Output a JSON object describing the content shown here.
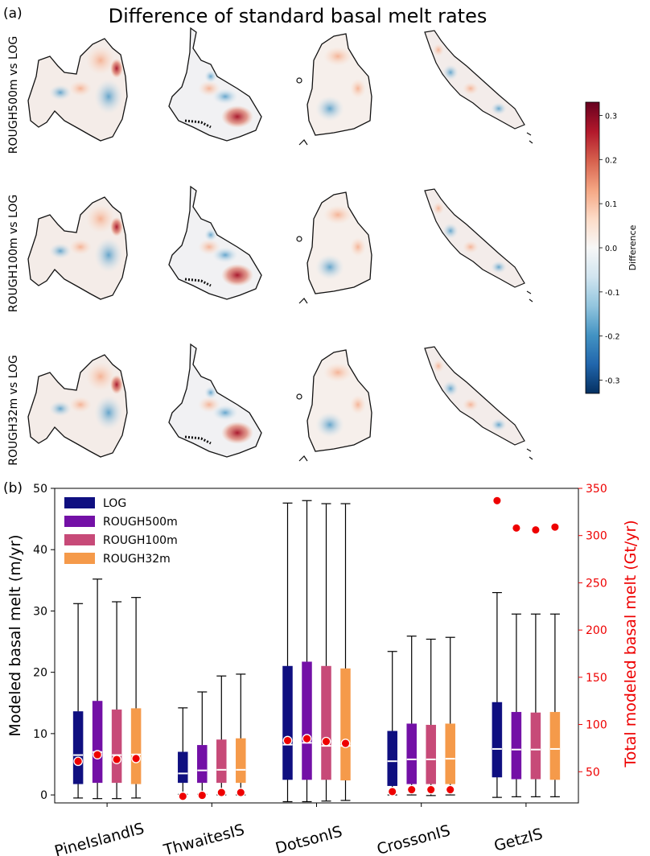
{
  "panel_a": {
    "label": "(a)",
    "title": "Difference of standard basal melt rates",
    "rows": [
      "ROUGH500m vs LOG",
      "ROUGH100m vs LOG",
      "ROUGH32m vs LOG"
    ],
    "colorbar": {
      "label": "Difference",
      "ticks": [
        "0.3",
        "0.2",
        "0.1",
        "0.0",
        "-0.1",
        "-0.2",
        "-0.3"
      ],
      "range": [
        -0.33,
        0.33
      ],
      "colors": [
        "#053061",
        "#2166ac",
        "#4393c3",
        "#92c5de",
        "#d1e5f0",
        "#f7f7f7",
        "#fddbc7",
        "#f4a582",
        "#d6604d",
        "#b2182b",
        "#67001f"
      ]
    },
    "map_color_hints": [
      {
        "pos": "hot-spot",
        "color": "#b2182b"
      },
      {
        "pos": "warm",
        "color": "#f4a582"
      },
      {
        "pos": "cool",
        "color": "#4393c3"
      }
    ]
  },
  "panel_b": {
    "label": "(b)"
  },
  "chart_data": {
    "type": "box",
    "categories": [
      "PineIslandIS",
      "ThwaitesIS",
      "DotsonIS",
      "CrossonIS",
      "GetzIS"
    ],
    "legend": [
      {
        "name": "LOG",
        "color": "#0f0f80"
      },
      {
        "name": "ROUGH500m",
        "color": "#7310a6"
      },
      {
        "name": "ROUGH100m",
        "color": "#c74a78"
      },
      {
        "name": "ROUGH32m",
        "color": "#f59a4a"
      }
    ],
    "ylabel": "Modeled basal melt (m/yr)",
    "y2label": "Total modeled basal melt (Gt/yr)",
    "ylim": [
      -1.3,
      50
    ],
    "yticks": [
      0,
      10,
      20,
      30,
      40,
      50
    ],
    "y2lim": [
      17,
      350
    ],
    "y2ticks": [
      50,
      100,
      150,
      200,
      250,
      300,
      350
    ],
    "series": [
      {
        "name": "LOG",
        "boxes": [
          {
            "min": -0.5,
            "q1": 1.8,
            "median": 6.5,
            "q3": 13.6,
            "max": 31.2
          },
          {
            "min": 0.1,
            "q1": 2.0,
            "median": 3.5,
            "q3": 7.0,
            "max": 14.2
          },
          {
            "min": -1.1,
            "q1": 2.5,
            "median": 8.2,
            "q3": 21.0,
            "max": 47.6
          },
          {
            "min": 0.0,
            "q1": 1.5,
            "median": 5.5,
            "q3": 10.4,
            "max": 23.4
          },
          {
            "min": -0.4,
            "q1": 2.9,
            "median": 7.5,
            "q3": 15.1,
            "max": 33.0
          }
        ],
        "totals": [
          61,
          24,
          83,
          29,
          337
        ]
      },
      {
        "name": "ROUGH500m",
        "boxes": [
          {
            "min": -0.6,
            "q1": 2.0,
            "median": 7.0,
            "q3": 15.3,
            "max": 35.2
          },
          {
            "min": 0.1,
            "q1": 2.0,
            "median": 4.0,
            "q3": 8.1,
            "max": 16.8
          },
          {
            "min": -1.1,
            "q1": 2.5,
            "median": 8.5,
            "q3": 21.7,
            "max": 48.0
          },
          {
            "min": 0.0,
            "q1": 1.8,
            "median": 5.8,
            "q3": 11.6,
            "max": 25.9
          },
          {
            "min": -0.3,
            "q1": 2.6,
            "median": 7.4,
            "q3": 13.5,
            "max": 29.5
          }
        ],
        "totals": [
          68,
          25,
          85,
          31,
          308
        ]
      },
      {
        "name": "ROUGH100m",
        "boxes": [
          {
            "min": -0.6,
            "q1": 2.0,
            "median": 6.5,
            "q3": 13.9,
            "max": 31.5
          },
          {
            "min": 0.0,
            "q1": 2.0,
            "median": 4.1,
            "q3": 9.0,
            "max": 19.4
          },
          {
            "min": -1.0,
            "q1": 2.5,
            "median": 8.0,
            "q3": 21.0,
            "max": 47.5
          },
          {
            "min": -0.1,
            "q1": 1.8,
            "median": 5.8,
            "q3": 11.4,
            "max": 25.4
          },
          {
            "min": -0.3,
            "q1": 2.6,
            "median": 7.4,
            "q3": 13.4,
            "max": 29.5
          }
        ],
        "totals": [
          63,
          28,
          82,
          31,
          306
        ]
      },
      {
        "name": "ROUGH32m",
        "boxes": [
          {
            "min": -0.5,
            "q1": 1.8,
            "median": 6.6,
            "q3": 14.1,
            "max": 32.2
          },
          {
            "min": 0.0,
            "q1": 2.0,
            "median": 4.1,
            "q3": 9.2,
            "max": 19.7
          },
          {
            "min": -0.9,
            "q1": 2.4,
            "median": 8.0,
            "q3": 20.6,
            "max": 47.5
          },
          {
            "min": 0.0,
            "q1": 1.8,
            "median": 5.9,
            "q3": 11.6,
            "max": 25.7
          },
          {
            "min": -0.3,
            "q1": 2.5,
            "median": 7.5,
            "q3": 13.5,
            "max": 29.5
          }
        ],
        "totals": [
          64,
          28,
          80,
          31,
          309
        ]
      }
    ]
  }
}
